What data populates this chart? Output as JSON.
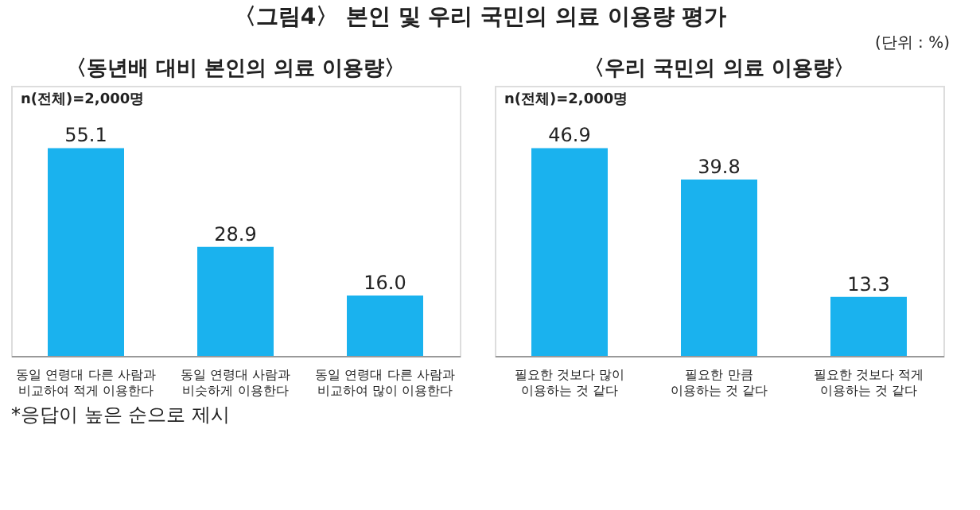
{
  "chart_data": [
    {
      "type": "bar",
      "title": "〈그림4〉 본인 및 우리 국민의 의료 이용량 평가",
      "subtitle": "〈동년배 대비 본인의 의료 이용량〉",
      "categories": [
        "동일 연령대 다른 사람과 비교하여 적게 이용한다",
        "동일 연령대 사람과 비슷하게 이용한다",
        "동일 연령대 다른 사람과 비교하여 많이 이용한다"
      ],
      "values": [
        55.1,
        28.9,
        16.0
      ],
      "value_labels": [
        "55.1",
        "28.9",
        "16.0"
      ],
      "color": "#1ab2ee",
      "grid": false,
      "annotations": [
        "n(전체)=2,000명",
        "(단위 : %)",
        "*응답이 높은 순으로 제시"
      ]
    },
    {
      "type": "bar",
      "subtitle": "〈우리 국민의 의료 이용량〉",
      "categories": [
        "필요한 것보다 많이 이용하는 것 같다",
        "필요한 만큼 이용하는 것 같다",
        "필요한 것보다 적게 이용하는 것 같다"
      ],
      "values": [
        46.9,
        39.8,
        13.3
      ],
      "value_labels": [
        "46.9",
        "39.8",
        "13.3"
      ],
      "color": "#1ab2ee",
      "grid": false,
      "annotations": [
        "n(전체)=2,000명"
      ]
    }
  ]
}
